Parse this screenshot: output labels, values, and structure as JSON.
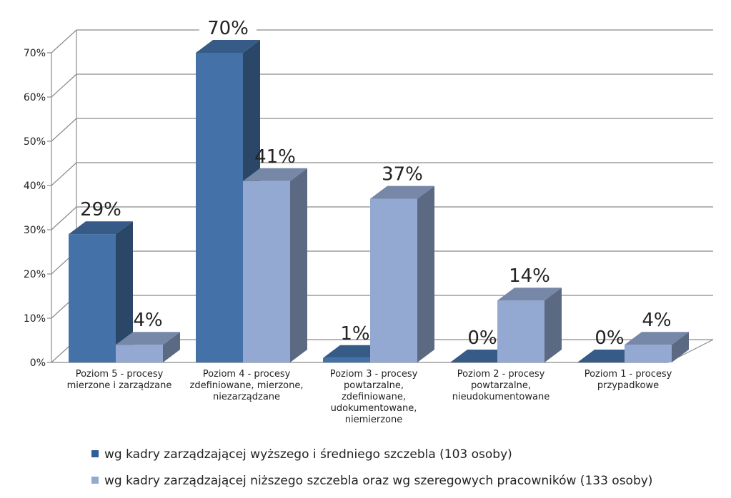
{
  "chart_data": {
    "type": "bar",
    "title": "",
    "xlabel": "",
    "ylabel": "",
    "ylim": [
      0,
      70
    ],
    "yticks": [
      "0%",
      "10%",
      "20%",
      "30%",
      "40%",
      "50%",
      "60%",
      "70%"
    ],
    "grid": true,
    "legend_position": "bottom",
    "categories": [
      "Poziom 5 - procesy mierzone i zarządzane",
      "Poziom 4 - procesy zdefiniowane, mierzone, niezarządzane",
      "Poziom 3 - procesy powtarzalne, zdefiniowane, udokumentowane, niemierzone",
      "Poziom 2 - procesy powtarzalne, nieudokumentowane",
      "Poziom 1 - procesy przypadkowe"
    ],
    "series": [
      {
        "name": "wg kadry zarządzającej wyższego i średniego szczebla (103 osoby)",
        "values": [
          29,
          70,
          1,
          0,
          0
        ],
        "labels": [
          "29%",
          "70%",
          "1%",
          "0%",
          "0%"
        ],
        "color": "#4472A8"
      },
      {
        "name": "wg kadry zarządzającej niższego szczebla oraz wg szeregowych pracowników (133 osoby)",
        "values": [
          4,
          41,
          37,
          14,
          4
        ],
        "labels": [
          "4%",
          "41%",
          "37%",
          "14%",
          "4%"
        ],
        "color": "#94A9D2"
      }
    ]
  }
}
